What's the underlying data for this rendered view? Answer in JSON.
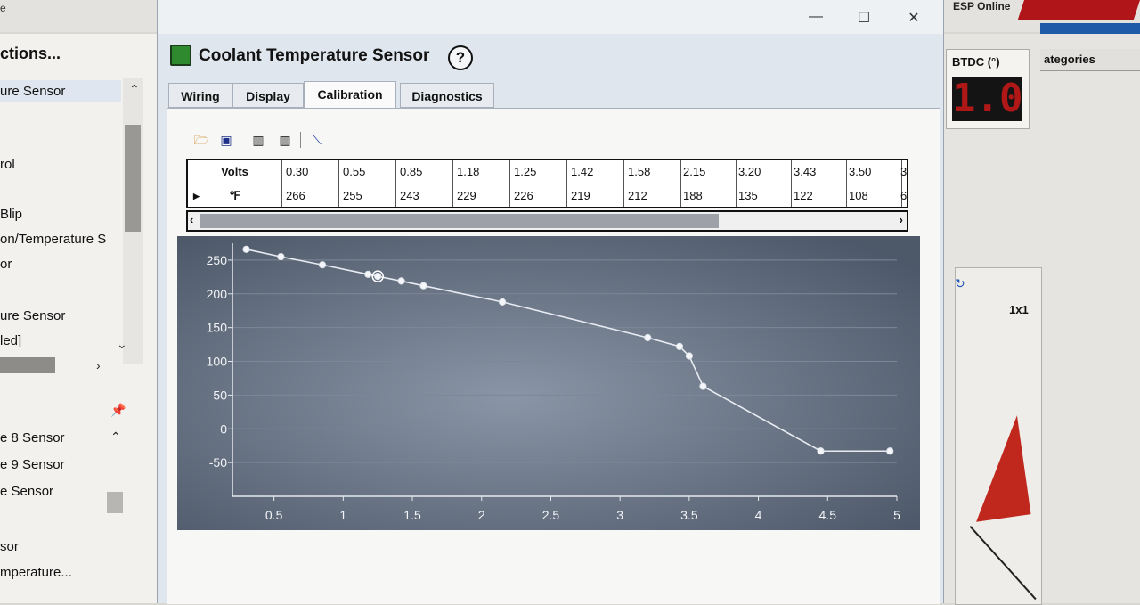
{
  "background": {
    "top_fragment": "e",
    "esp_online": "ESP Online",
    "left_panel": {
      "title": "ctions...",
      "selected": "ure Sensor",
      "items": [
        "rol",
        "Blip",
        "on/Temperature S",
        "or",
        "ure Sensor",
        "led]"
      ],
      "lower_items": [
        "e 8 Sensor",
        "e 9 Sensor",
        "e Sensor",
        "sor",
        "mperature..."
      ]
    },
    "right_panel": {
      "btdc_label": "BTDC  (°)",
      "btdc_value": "1.0",
      "categories_tab": "ategories",
      "gauge_label": "1x1"
    }
  },
  "dialog": {
    "title": "Coolant Temperature Sensor",
    "help": "?",
    "window_buttons": {
      "minimize": "—",
      "maximize": "☐",
      "close": "✕"
    },
    "tabs": [
      {
        "label": "Wiring",
        "active": false
      },
      {
        "label": "Display",
        "active": false
      },
      {
        "label": "Calibration",
        "active": true
      },
      {
        "label": "Diagnostics",
        "active": false
      }
    ],
    "toolbar": [
      "open-folder-icon",
      "save-icon",
      "insert-column-icon",
      "delete-column-icon",
      "draw-line-icon"
    ],
    "table": {
      "header_x": "Volts",
      "header_y": "℉",
      "volts": [
        "0.30",
        "0.55",
        "0.85",
        "1.18",
        "1.25",
        "1.42",
        "1.58",
        "2.15",
        "3.20",
        "3.43",
        "3.50",
        "3"
      ],
      "temps": [
        "266",
        "255",
        "243",
        "229",
        "226",
        "219",
        "212",
        "188",
        "135",
        "122",
        "108",
        "6"
      ]
    }
  },
  "chart_data": {
    "type": "line",
    "x": [
      0.3,
      0.55,
      0.85,
      1.18,
      1.25,
      1.42,
      1.58,
      2.15,
      3.2,
      3.43,
      3.5,
      3.6,
      4.45,
      4.95
    ],
    "y": [
      266,
      255,
      243,
      229,
      226,
      219,
      212,
      188,
      135,
      122,
      108,
      63,
      -33,
      -33
    ],
    "xticks": [
      "0.5",
      "1",
      "1.5",
      "2",
      "2.5",
      "3",
      "3.5",
      "4",
      "4.5",
      "5"
    ],
    "xtick_values": [
      0.5,
      1,
      1.5,
      2,
      2.5,
      3,
      3.5,
      4,
      4.5,
      5
    ],
    "yticks": [
      "250",
      "200",
      "150",
      "100",
      "50",
      "0",
      "-50"
    ],
    "ytick_values": [
      250,
      200,
      150,
      100,
      50,
      0,
      -50
    ],
    "xlim": [
      0.2,
      5.0
    ],
    "ylim": [
      -100,
      275
    ],
    "grid": true,
    "highlighted_index": 4,
    "colors": {
      "background": "#556072",
      "line": "#e8ecf2",
      "grid": "#7d8798"
    }
  }
}
